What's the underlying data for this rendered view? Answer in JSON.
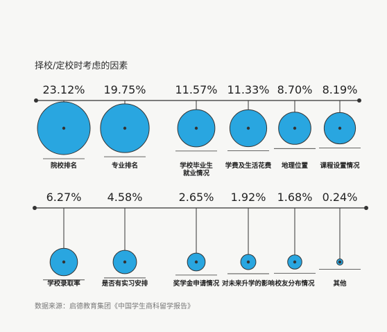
{
  "title": "择校/定校时考虑的因素",
  "source": "数据来源：启德教育集团《中国学生商科留学报告》",
  "accent_color": "#29a6e0",
  "chart_data": {
    "type": "bubble",
    "title": "择校/定校时考虑的因素",
    "unit": "%",
    "categories": [
      [
        "院校排名"
      ],
      [
        "专业排名"
      ],
      [
        "学校毕业生",
        "就业情况"
      ],
      [
        "学费及生活花费"
      ],
      [
        "地理位置"
      ],
      [
        "课程设置情况"
      ],
      [
        "学校录取率"
      ],
      [
        "是否有实习安排"
      ],
      [
        "奖学金申请情况"
      ],
      [
        "对未来升学的影响"
      ],
      [
        "校友分布情况"
      ],
      [
        "其他"
      ]
    ],
    "values": [
      23.12,
      19.75,
      11.57,
      11.33,
      8.7,
      8.19,
      6.27,
      4.58,
      2.65,
      1.92,
      1.68,
      0.24
    ],
    "labels": [
      "23.12%",
      "19.75%",
      "11.57%",
      "11.33%",
      "8.70%",
      "8.19%",
      "6.27%",
      "4.58%",
      "2.65%",
      "1.92%",
      "1.68%",
      "0.24%"
    ]
  }
}
